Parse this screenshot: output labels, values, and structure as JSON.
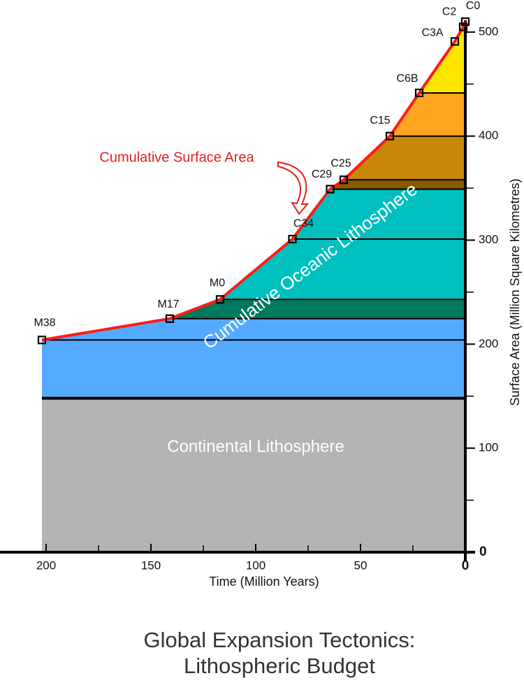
{
  "chart_data": {
    "type": "line",
    "title": [
      "Global Expansion Tectonics:",
      "Lithospheric Budget"
    ],
    "x_label": "Time (Million Years)",
    "y_label": "Surface Area (Million Square Kilometres)",
    "xlim": [
      222,
      0
    ],
    "ylim": [
      0,
      510
    ],
    "xticks": [
      200,
      150,
      100,
      50,
      0
    ],
    "minor_xticks": [
      175,
      125,
      75,
      25
    ],
    "yticks": [
      0,
      100,
      200,
      300,
      400,
      500
    ],
    "minor_yticks": [
      50,
      150,
      250,
      350,
      450
    ],
    "series": [
      {
        "name": "Cumulative Surface Area",
        "color": "#ff1a1a",
        "x": [
          202,
          141,
          117,
          82.5,
          64.5,
          58,
          36,
          22,
          5,
          1,
          0
        ],
        "values": [
          204,
          224.5,
          243,
          301,
          349,
          358,
          400,
          441.5,
          491,
          505,
          510
        ],
        "point_labels": [
          "M38",
          "M17",
          "M0",
          "C34",
          "C29",
          "C25",
          "C15",
          "C6B",
          "C3A",
          "C2",
          "C0"
        ]
      }
    ],
    "bands": [
      {
        "from": 0,
        "to": 148,
        "color": "#b3b3b3"
      },
      {
        "from": 148,
        "to": 204,
        "color": "#55aaff"
      },
      {
        "from": 204,
        "to": 224.5,
        "color": "#55aaff"
      },
      {
        "from": 224.5,
        "to": 243,
        "color": "#007a5e"
      },
      {
        "from": 243,
        "to": 301,
        "color": "#00bfbf"
      },
      {
        "from": 301,
        "to": 349,
        "color": "#00bfbf"
      },
      {
        "from": 349,
        "to": 358,
        "color": "#8a5a00"
      },
      {
        "from": 358,
        "to": 400,
        "color": "#c8860a"
      },
      {
        "from": 400,
        "to": 441.5,
        "color": "#ffa520"
      },
      {
        "from": 441.5,
        "to": 510,
        "color": "#ffe600"
      }
    ],
    "annotations": {
      "curve": "Cumulative Surface Area",
      "oceanic": "Cumulative Oceanic Lithosphere",
      "continental": "Continental Lithosphere"
    }
  }
}
